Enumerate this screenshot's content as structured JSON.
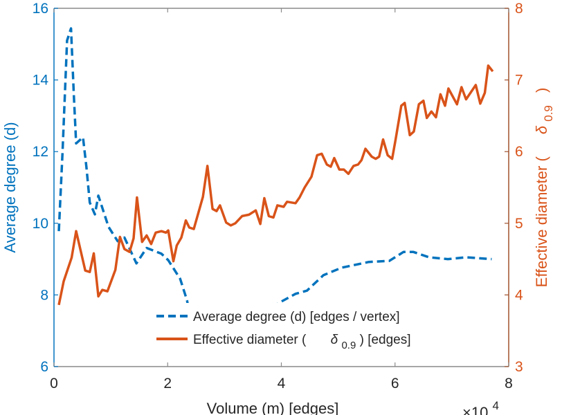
{
  "chart_data": {
    "type": "line",
    "xlabel": "Volume (m) [edges]",
    "x_multiplier": "×10",
    "x_multiplier_exp": "4",
    "ylabel_left": "Average degree (d)",
    "ylabel_right_prefix": "Effective diameter (",
    "ylabel_right_symbol": "δ",
    "ylabel_right_sub": "0.9",
    "ylabel_right_suffix": ")",
    "xlim": [
      0,
      8
    ],
    "ylim_left": [
      6,
      16
    ],
    "ylim_right": [
      3,
      8
    ],
    "xticks": [
      "0",
      "2",
      "4",
      "6",
      "8"
    ],
    "yticks_left": [
      "6",
      "8",
      "10",
      "12",
      "14",
      "16"
    ],
    "yticks_right": [
      "3",
      "4",
      "5",
      "6",
      "7",
      "8"
    ],
    "grid": false,
    "legend_placement": "bottom-center",
    "colors": {
      "left": "#0072BD",
      "right": "#D95319",
      "axis": "#262626"
    },
    "series": [
      {
        "name": "Average degree (d) [edges / vertex]",
        "axis": "left",
        "style": "dashed",
        "x": [
          0.085,
          0.15,
          0.23,
          0.3,
          0.35,
          0.39,
          0.51,
          0.57,
          0.63,
          0.72,
          0.78,
          0.96,
          1.12,
          1.24,
          1.45,
          1.63,
          1.89,
          2.01,
          2.22,
          2.34,
          2.42,
          2.55,
          2.83,
          3.35,
          3.96,
          4.25,
          4.45,
          4.74,
          5.06,
          5.54,
          5.9,
          6.15,
          6.32,
          6.6,
          6.93,
          7.25,
          7.7
        ],
        "y": [
          9.78,
          11.96,
          15.1,
          15.44,
          13.57,
          12.23,
          12.4,
          11.58,
          10.58,
          10.25,
          10.77,
          9.9,
          9.5,
          9.6,
          8.88,
          9.31,
          9.15,
          8.97,
          8.45,
          7.85,
          7.18,
          6.9,
          6.9,
          7.04,
          7.78,
          8.03,
          8.12,
          8.55,
          8.76,
          8.92,
          8.95,
          9.2,
          9.2,
          9.05,
          9.0,
          9.05,
          9.0
        ]
      },
      {
        "name_prefix": "Effective diameter (",
        "name_symbol": "δ",
        "name_sub": "0.9",
        "name_suffix": ") [edges]",
        "axis": "right",
        "style": "solid",
        "x": [
          0.085,
          0.17,
          0.31,
          0.39,
          0.55,
          0.63,
          0.7,
          0.78,
          0.85,
          0.94,
          1.08,
          1.16,
          1.24,
          1.33,
          1.4,
          1.46,
          1.55,
          1.63,
          1.71,
          1.79,
          1.89,
          1.97,
          2.01,
          2.1,
          2.16,
          2.24,
          2.32,
          2.38,
          2.46,
          2.62,
          2.7,
          2.79,
          2.86,
          2.92,
          3.03,
          3.11,
          3.19,
          3.31,
          3.43,
          3.55,
          3.63,
          3.7,
          3.78,
          3.86,
          3.93,
          4.04,
          4.1,
          4.25,
          4.32,
          4.41,
          4.53,
          4.63,
          4.71,
          4.8,
          4.87,
          4.93,
          5.02,
          5.1,
          5.18,
          5.27,
          5.35,
          5.41,
          5.48,
          5.59,
          5.66,
          5.72,
          5.79,
          5.87,
          5.95,
          6.01,
          6.11,
          6.17,
          6.26,
          6.33,
          6.42,
          6.5,
          6.56,
          6.64,
          6.72,
          6.8,
          6.88,
          6.94,
          7.09,
          7.17,
          7.25,
          7.42,
          7.5,
          7.58,
          7.64,
          7.72
        ],
        "y": [
          3.86,
          4.19,
          4.52,
          4.89,
          4.34,
          4.32,
          4.58,
          3.98,
          4.07,
          4.05,
          4.35,
          4.81,
          4.64,
          4.6,
          4.79,
          5.36,
          4.74,
          4.83,
          4.71,
          4.87,
          4.89,
          4.87,
          4.9,
          4.47,
          4.69,
          4.8,
          5.04,
          4.94,
          4.92,
          5.37,
          5.8,
          5.2,
          5.17,
          5.25,
          5.01,
          4.97,
          5.0,
          5.1,
          5.12,
          5.18,
          4.99,
          5.35,
          5.1,
          5.08,
          5.25,
          5.23,
          5.3,
          5.28,
          5.36,
          5.5,
          5.65,
          5.95,
          5.97,
          5.82,
          5.79,
          5.91,
          5.75,
          5.75,
          5.69,
          5.8,
          5.82,
          5.88,
          6.04,
          5.93,
          5.9,
          5.93,
          6.17,
          5.95,
          5.9,
          6.17,
          6.64,
          6.68,
          6.23,
          6.28,
          6.66,
          6.71,
          6.47,
          6.56,
          6.48,
          6.8,
          6.64,
          6.88,
          6.66,
          6.9,
          6.73,
          6.93,
          6.67,
          6.82,
          7.2,
          7.12
        ]
      }
    ]
  }
}
